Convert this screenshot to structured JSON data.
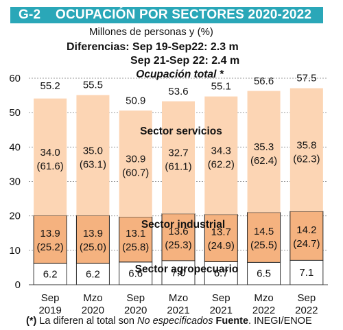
{
  "header": {
    "code": "G-2",
    "title": "OCUPACIÓN POR SECTORES 2020-2022",
    "subtitle": "Millones de personas y (%)",
    "diff_line1": "Diferencias: Sep 19-Sep22: 2.3 m",
    "diff_line2": "Sep 21-Sep 22: 2.4 m"
  },
  "footnote": {
    "part1": "(*)",
    "part2": " La diferen al total son ",
    "part3": "No especificados",
    "part4": " Fuente",
    "part5": ". INEGI/ENOE"
  },
  "colors": {
    "title_bg": "#2aa7b8",
    "services": "#fcd5b4",
    "industry": "#f5b27f",
    "agro": "#ffffff",
    "grid": "#9a9a9a"
  },
  "chart_data": {
    "type": "bar",
    "stacked": true,
    "categories": [
      [
        "Sep",
        "2019"
      ],
      [
        "Mzo",
        "2020"
      ],
      [
        "Sep",
        "2020"
      ],
      [
        "Mzo",
        "2021"
      ],
      [
        "Sep",
        "2021"
      ],
      [
        "Mzo",
        "2022"
      ],
      [
        "Sep",
        "2022"
      ]
    ],
    "ylim": [
      0,
      60
    ],
    "yticks": [
      "0",
      "10",
      "20",
      "30",
      "40",
      "50",
      "60"
    ],
    "grid": true,
    "totals": [
      "55.2",
      "55.5",
      "50.9",
      "53.6",
      "55.1",
      "56.6",
      "57.5"
    ],
    "total_values": [
      55.2,
      55.5,
      50.9,
      53.6,
      55.1,
      56.6,
      57.5
    ],
    "total_label": "Ocupación total *",
    "series": [
      {
        "name": "Sector agropecuario",
        "values": [
          6.2,
          6.2,
          6.6,
          7.0,
          6.7,
          6.5,
          7.1
        ],
        "labels": [
          "6.2",
          "6.2",
          "6.6",
          "7.0",
          "6.7",
          "6.5",
          "7.1"
        ],
        "pct": []
      },
      {
        "name": "Sector industrial",
        "values": [
          13.9,
          13.9,
          13.1,
          13.6,
          13.7,
          14.5,
          14.2
        ],
        "labels": [
          "13.9",
          "13.9",
          "13.1",
          "13.6",
          "13.7",
          "14.5",
          "14.2"
        ],
        "pct": [
          "(25.2)",
          "(25.0)",
          "(25.8)",
          "(25.3)",
          "(24.9)",
          "(25.5)",
          "(24.7)"
        ]
      },
      {
        "name": "Sector servicios",
        "values": [
          34.0,
          35.0,
          30.9,
          32.7,
          34.3,
          35.3,
          35.8
        ],
        "labels": [
          "34.0",
          "35.0",
          "30.9",
          "32.7",
          "34.3",
          "35.3",
          "35.8"
        ],
        "pct": [
          "(61.6)",
          "(63.1)",
          "(60.7)",
          "(61.1)",
          "(62.2)",
          "(62.4)",
          "(62.3)"
        ]
      }
    ]
  }
}
